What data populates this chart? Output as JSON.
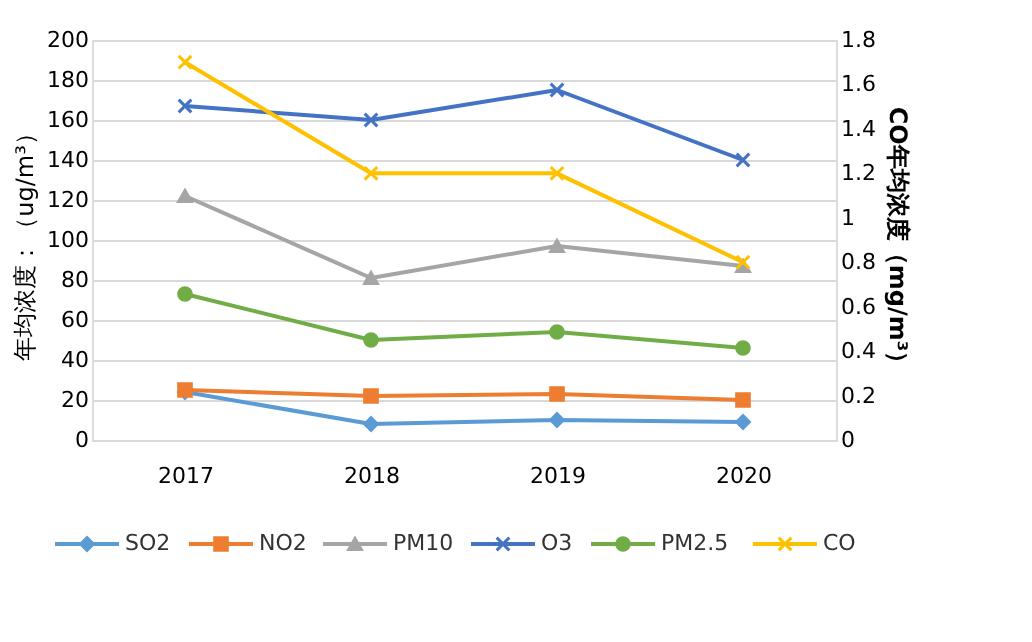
{
  "chart_data": {
    "type": "line",
    "ylabel": "年均浓度：（ug/m³）",
    "y2label": "CO年均浓度（mg/m³）",
    "categories": [
      "2017",
      "2018",
      "2019",
      "2020"
    ],
    "series": [
      {
        "name": "SO2",
        "color": "#5b9bd5",
        "marker": "diamond",
        "values": [
          24,
          8,
          10,
          9
        ]
      },
      {
        "name": "NO2",
        "color": "#ed7d31",
        "marker": "square",
        "values": [
          25,
          22,
          23,
          20
        ]
      },
      {
        "name": "PM10",
        "color": "#a5a5a5",
        "marker": "triangle",
        "values": [
          122,
          81,
          97,
          87
        ]
      },
      {
        "name": "O3",
        "color": "#4472c4",
        "marker": "cross",
        "values": [
          167,
          160,
          175,
          140
        ]
      },
      {
        "name": "PM2.5",
        "color": "#70ad47",
        "marker": "circle",
        "values": [
          73,
          50,
          54,
          46
        ]
      },
      {
        "name": "CO",
        "color": "#ffc000",
        "marker": "cross",
        "axis": "y2",
        "values": [
          1.7,
          1.2,
          1.2,
          0.8
        ]
      }
    ],
    "ylim": [
      0,
      200
    ],
    "yticks": [
      0,
      20,
      40,
      60,
      80,
      100,
      120,
      140,
      160,
      180,
      200
    ],
    "y2lim": [
      0,
      1.8
    ],
    "y2ticks": [
      0,
      0.2,
      0.4,
      0.6,
      0.8,
      1,
      1.2,
      1.4,
      1.6,
      1.8
    ],
    "grid": "y",
    "legend": "bottom"
  }
}
